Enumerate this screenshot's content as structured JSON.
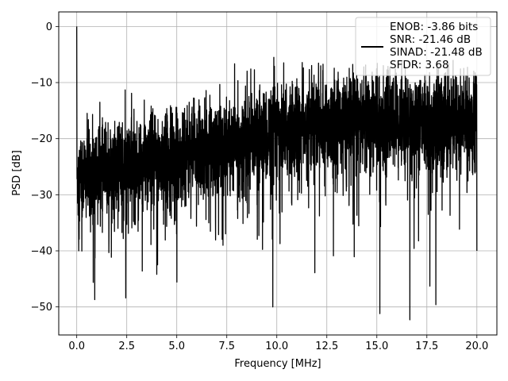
{
  "chart_data": {
    "type": "line",
    "xlabel": "Frequency [MHz]",
    "ylabel": "PSD [dB]",
    "xlim": [
      -0.9,
      21.0
    ],
    "ylim": [
      -55,
      2.6
    ],
    "x_ticks": [
      0.0,
      2.5,
      5.0,
      7.5,
      10.0,
      12.5,
      15.0,
      17.5,
      20.0
    ],
    "x_tick_labels": [
      "0.0",
      "2.5",
      "5.0",
      "7.5",
      "10.0",
      "12.5",
      "15.0",
      "17.5",
      "20.0"
    ],
    "y_ticks": [
      0,
      -10,
      -20,
      -30,
      -40,
      -50
    ],
    "y_tick_labels": [
      "0",
      "−10",
      "−20",
      "−30",
      "−40",
      "−50"
    ],
    "grid": true,
    "legend_position": "top-right",
    "series": [
      {
        "name": "ENOB: -3.86 bits\nSNR: -21.46 dB\nSINAD: -21.48 dB\nSFDR: 3.68",
        "legend_lines": [
          "ENOB: -3.86 bits",
          "SNR: -21.46 dB",
          "SINAD: -21.48 dB",
          "SFDR: 3.68"
        ],
        "color": "#000000",
        "x_start": 0.0,
        "x_end": 20.0,
        "noise_floor_start": -27,
        "noise_floor_end": -17,
        "peaks": [
          {
            "x": 0.0,
            "y": 0.0
          },
          {
            "x": 9.85,
            "y": -5.5
          },
          {
            "x": 14.35,
            "y": -7.2
          }
        ],
        "dips": [
          {
            "x": 0.9,
            "y": -48.7
          },
          {
            "x": 2.45,
            "y": -48.4
          },
          {
            "x": 9.8,
            "y": -50.0
          },
          {
            "x": 15.15,
            "y": -51.2
          },
          {
            "x": 16.65,
            "y": -52.3
          },
          {
            "x": 17.65,
            "y": -46.3
          },
          {
            "x": 17.95,
            "y": -49.6
          },
          {
            "x": 11.9,
            "y": -43.9
          },
          {
            "x": 20.0,
            "y": -40.0
          }
        ]
      }
    ]
  }
}
